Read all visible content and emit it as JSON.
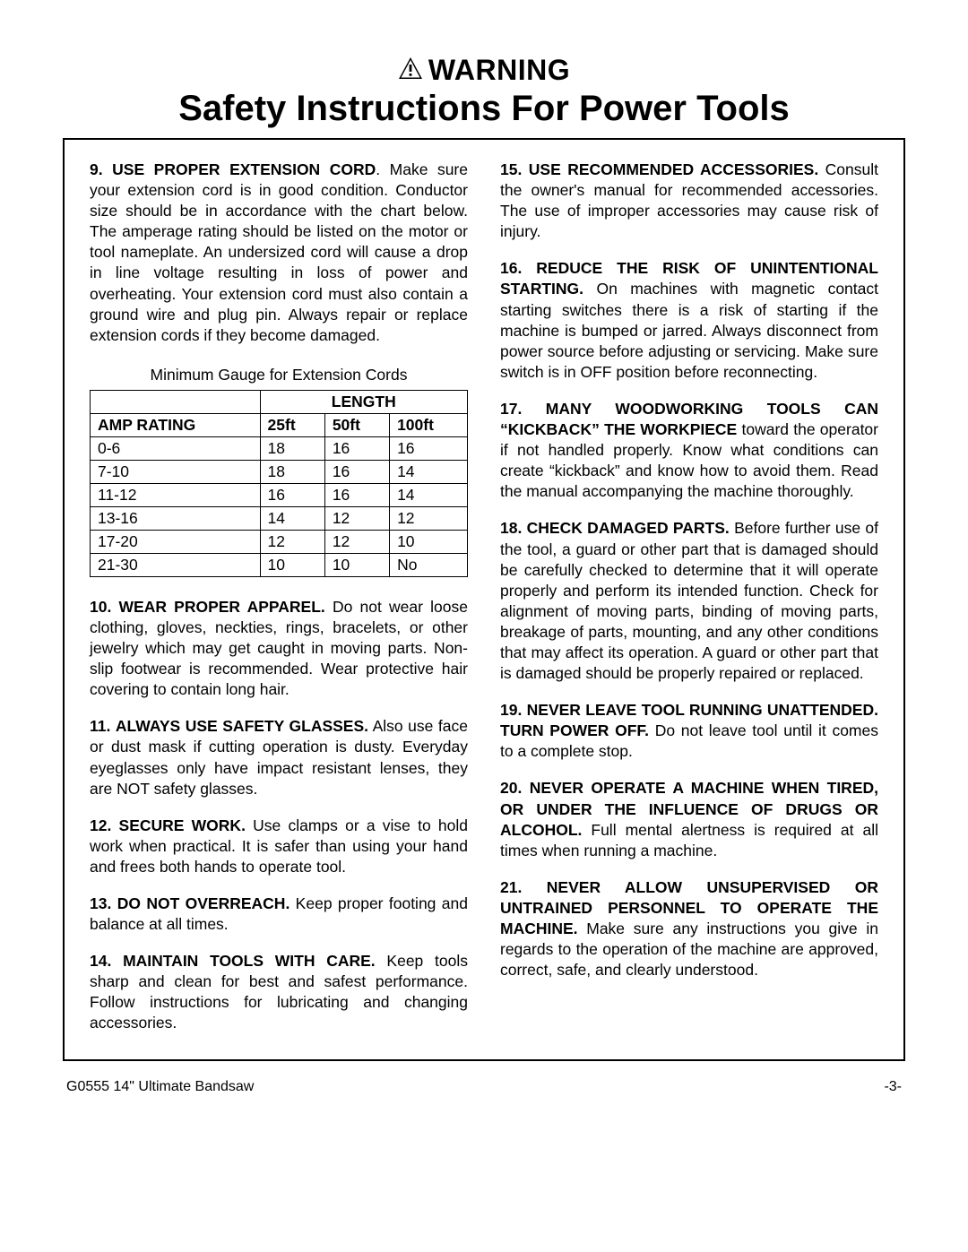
{
  "header": {
    "warning_label": "WARNING",
    "title": "Safety Instructions For Power Tools"
  },
  "left_column": {
    "item9": {
      "num": "9.",
      "head": "USE PROPER EXTENSION CORD",
      "body": ". Make sure your extension cord is in good condition. Conductor size should be in accordance with the chart below. The amperage rating should be listed on the motor or tool nameplate. An undersized cord will cause a drop in line voltage resulting in loss of power and overheating. Your extension cord must also contain a ground wire and plug pin. Always repair or replace extension cords if they become damaged."
    },
    "table": {
      "caption": "Minimum Gauge for Extension Cords",
      "length_label": "LENGTH",
      "amp_label": "AMP RATING",
      "cols": {
        "c1": "25ft",
        "c2": "50ft",
        "c3": "100ft"
      },
      "rows": [
        {
          "amp": "0-6",
          "c1": "18",
          "c2": "16",
          "c3": "16"
        },
        {
          "amp": "7-10",
          "c1": "18",
          "c2": "16",
          "c3": "14"
        },
        {
          "amp": "11-12",
          "c1": "16",
          "c2": "16",
          "c3": "14"
        },
        {
          "amp": "13-16",
          "c1": "14",
          "c2": "12",
          "c3": "12"
        },
        {
          "amp": "17-20",
          "c1": "12",
          "c2": "12",
          "c3": "10"
        },
        {
          "amp": "21-30",
          "c1": "10",
          "c2": "10",
          "c3": "No"
        }
      ]
    },
    "item10": {
      "num": "10.",
      "head": "WEAR PROPER APPAREL.",
      "body": " Do not wear loose clothing, gloves, neckties, rings, bracelets, or other jewelry which may get caught in moving parts. Non-slip footwear is recommended. Wear protective hair covering to contain long hair."
    },
    "item11": {
      "num": "11.",
      "head": "ALWAYS USE SAFETY GLASSES.",
      "body": " Also use face or dust mask if cutting operation is dusty. Everyday eyeglasses only have impact resistant lenses, they are NOT safety glasses."
    },
    "item12": {
      "num": "12.",
      "head": "SECURE WORK.",
      "body": " Use clamps or a vise to hold work when practical. It is safer than using your hand and frees both hands to operate tool."
    },
    "item13": {
      "num": "13.",
      "head": "DO NOT OVERREACH.",
      "body": " Keep proper footing and balance at all times."
    },
    "item14": {
      "num": "14.",
      "head": "MAINTAIN TOOLS WITH CARE.",
      "body": " Keep tools sharp and clean for best and safest performance. Follow instructions for lubricating and changing accessories."
    }
  },
  "right_column": {
    "item15": {
      "num": "15.",
      "head": "USE RECOMMENDED ACCESSORIES.",
      "body": " Consult the owner's manual for recommended accessories. The use of improper accessories may cause risk of injury."
    },
    "item16": {
      "num": "16.",
      "head": "REDUCE THE RISK OF UNINTENTIONAL STARTING.",
      "body": " On machines with magnetic contact starting switches there is a risk of starting if the machine is bumped or jarred. Always disconnect from power source before adjusting or servicing. Make sure switch is in OFF position before reconnecting."
    },
    "item17": {
      "num": "17.",
      "head": "MANY WOODWORKING TOOLS CAN “KICKBACK” THE WORKPIECE",
      "body": " toward the operator if not handled properly. Know what conditions can create “kickback” and know how to avoid them. Read the manual accompanying the machine thoroughly."
    },
    "item18": {
      "num": "18.",
      "head": "CHECK DAMAGED PARTS.",
      "body": " Before further use of the tool, a guard or other part that is damaged should be carefully checked to determine that it will operate properly and perform its intended function. Check for alignment of moving parts, binding of moving parts, breakage of parts, mounting, and any other conditions that may affect its operation. A guard or other part that is damaged should be properly repaired or replaced."
    },
    "item19": {
      "num": "19.",
      "head": "NEVER LEAVE TOOL RUNNING UNATTENDED. TURN POWER OFF.",
      "body": " Do not leave tool until it comes to a complete stop."
    },
    "item20": {
      "num": "20.",
      "head": "NEVER OPERATE A MACHINE WHEN TIRED, OR UNDER THE INFLUENCE OF DRUGS OR ALCOHOL.",
      "body": " Full mental alertness is required at all times when running a machine."
    },
    "item21": {
      "num": "21.",
      "head": "NEVER ALLOW UNSUPERVISED OR UNTRAINED PERSONNEL TO OPERATE THE MACHINE.",
      "body": " Make sure any instructions you give in regards to the operation of the machine are approved, correct, safe, and clearly understood."
    }
  },
  "footer": {
    "left": "G0555 14\" Ultimate Bandsaw",
    "right": "-3-"
  }
}
